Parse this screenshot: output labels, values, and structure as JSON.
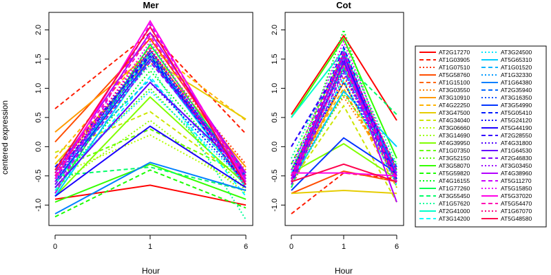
{
  "chart_data": {
    "type": "line",
    "ylabel": "centered expression",
    "x_categories": [
      "0",
      "1",
      "6"
    ],
    "ylim": [
      -1.35,
      2.3
    ],
    "yticks": [
      -1.0,
      -0.5,
      0.0,
      0.5,
      1.0,
      1.5,
      2.0
    ],
    "yticks_labels": [
      "-1.0",
      "-0.5",
      "0.0",
      "0.5",
      "1.0",
      "1.5",
      "2.0"
    ],
    "panels": [
      {
        "title": "Mer",
        "xlabel": "Hour"
      },
      {
        "title": "Cot",
        "xlabel": "Hour"
      }
    ],
    "series": [
      {
        "name": "AT2G17270",
        "color": "#FF0000",
        "dash": "solid",
        "mer": [
          -0.9,
          -0.66,
          -1.0
        ],
        "cot": [
          0.55,
          1.9,
          0.45
        ]
      },
      {
        "name": "AT1G03905",
        "color": "#FF1A00",
        "dash": "dashed",
        "mer": [
          0.65,
          1.95,
          0.22
        ],
        "cot": [
          -1.15,
          -0.45,
          -0.55
        ]
      },
      {
        "name": "AT1G07510",
        "color": "#FF3300",
        "dash": "dotted",
        "mer": [
          -0.5,
          1.65,
          -0.3
        ],
        "cot": [
          -0.7,
          1.2,
          -0.4
        ]
      },
      {
        "name": "AT5G58760",
        "color": "#FF4D00",
        "dash": "solid",
        "mer": [
          0.08,
          1.85,
          -0.45
        ],
        "cot": [
          -0.8,
          -0.42,
          -0.6
        ]
      },
      {
        "name": "AT1G15100",
        "color": "#FF6600",
        "dash": "dashed",
        "mer": [
          -0.4,
          1.55,
          -0.5
        ],
        "cot": [
          -0.6,
          0.95,
          -0.55
        ]
      },
      {
        "name": "AT3G03550",
        "color": "#FF8000",
        "dash": "dotted",
        "mer": [
          -0.6,
          1.45,
          -0.4
        ],
        "cot": [
          -0.4,
          0.85,
          -0.5
        ]
      },
      {
        "name": "AT3G10910",
        "color": "#FF9900",
        "dash": "solid",
        "mer": [
          0.25,
          1.6,
          -0.35
        ],
        "cot": [
          -0.55,
          1.1,
          -0.6
        ]
      },
      {
        "name": "AT4G22250",
        "color": "#FFB300",
        "dash": "dashed",
        "mer": [
          -0.2,
          1.7,
          0.45
        ],
        "cot": [
          -0.5,
          1.0,
          -0.7
        ]
      },
      {
        "name": "AT3G47500",
        "color": "#E6CC00",
        "dash": "solid",
        "mer": [
          -0.3,
          1.5,
          0.47
        ],
        "cot": [
          -0.8,
          -0.75,
          -0.8
        ]
      },
      {
        "name": "AT4G34040",
        "color": "#CCE600",
        "dash": "dashed",
        "mer": [
          -0.1,
          0.6,
          -0.6
        ],
        "cot": [
          -0.6,
          0.7,
          -0.95
        ]
      },
      {
        "name": "AT3G06660",
        "color": "#B3FF00",
        "dash": "dotted",
        "mer": [
          -0.5,
          0.2,
          -0.7
        ],
        "cot": [
          -0.7,
          1.5,
          -0.5
        ]
      },
      {
        "name": "AT3G14690",
        "color": "#99FF00",
        "dash": "dotted",
        "mer": [
          -0.7,
          0.45,
          -0.8
        ],
        "cot": [
          -0.5,
          1.4,
          -0.6
        ]
      },
      {
        "name": "AT4G39950",
        "color": "#80FF00",
        "dash": "solid",
        "mer": [
          -0.85,
          0.85,
          -0.65
        ],
        "cot": [
          -0.45,
          0.05,
          -0.55
        ]
      },
      {
        "name": "AT1G07350",
        "color": "#66FF00",
        "dash": "dashed",
        "mer": [
          -0.4,
          0.3,
          -0.5
        ],
        "cot": [
          -0.3,
          1.6,
          -0.4
        ]
      },
      {
        "name": "AT3G52150",
        "color": "#4DFF00",
        "dash": "dotted",
        "mer": [
          -0.6,
          1.0,
          -0.75
        ],
        "cot": [
          -0.6,
          0.9,
          -0.3
        ]
      },
      {
        "name": "AT3G58070",
        "color": "#33FF00",
        "dash": "solid",
        "mer": [
          -0.95,
          -0.3,
          -0.9
        ],
        "cot": [
          0.5,
          1.85,
          -0.2
        ]
      },
      {
        "name": "AT5G59820",
        "color": "#1AFF00",
        "dash": "dashed",
        "mer": [
          -1.2,
          -0.4,
          -1.05
        ],
        "cot": [
          -0.5,
          1.55,
          -0.6
        ]
      },
      {
        "name": "AT4G16155",
        "color": "#00FF1A",
        "dash": "dotted",
        "mer": [
          -0.7,
          1.3,
          -0.6
        ],
        "cot": [
          -0.6,
          2.0,
          -0.7
        ]
      },
      {
        "name": "AT1G77260",
        "color": "#00FF4D",
        "dash": "solid",
        "mer": [
          -0.8,
          1.75,
          -0.55
        ],
        "cot": [
          -0.4,
          1.35,
          -0.45
        ]
      },
      {
        "name": "AT3G55450",
        "color": "#00FF66",
        "dash": "dashed",
        "mer": [
          -0.5,
          -0.35,
          -0.75
        ],
        "cot": [
          -0.7,
          1.45,
          0.55
        ]
      },
      {
        "name": "AT1G57620",
        "color": "#00FF99",
        "dash": "dotted",
        "mer": [
          -0.45,
          1.4,
          -1.25
        ],
        "cot": [
          -0.2,
          1.7,
          -0.3
        ]
      },
      {
        "name": "AT2G41000",
        "color": "#00FFCC",
        "dash": "solid",
        "mer": [
          -0.65,
          1.6,
          -0.7
        ],
        "cot": [
          0.5,
          1.65,
          -0.5
        ]
      },
      {
        "name": "AT3G14200",
        "color": "#00FFFF",
        "dash": "dashed",
        "mer": [
          -0.75,
          1.2,
          -0.85
        ],
        "cot": [
          -0.45,
          1.15,
          -0.65
        ]
      },
      {
        "name": "AT3G24500",
        "color": "#00E6FF",
        "dash": "dotted",
        "mer": [
          -0.55,
          0.95,
          -0.6
        ],
        "cot": [
          -0.55,
          1.25,
          -0.5
        ]
      },
      {
        "name": "AT5G65310",
        "color": "#00CCFF",
        "dash": "solid",
        "mer": [
          -0.85,
          1.5,
          -0.65
        ],
        "cot": [
          -0.6,
          0.95,
          0.0
        ]
      },
      {
        "name": "AT1G01520",
        "color": "#00B3FF",
        "dash": "dashed",
        "mer": [
          -0.4,
          1.15,
          -0.55
        ],
        "cot": [
          -0.5,
          1.35,
          -0.45
        ]
      },
      {
        "name": "AT1G32330",
        "color": "#0099FF",
        "dash": "dotted",
        "mer": [
          -0.6,
          1.65,
          -0.6
        ],
        "cot": [
          -0.55,
          1.5,
          -0.55
        ]
      },
      {
        "name": "AT1G64380",
        "color": "#0080FF",
        "dash": "solid",
        "mer": [
          -1.15,
          -0.27,
          -0.75
        ],
        "cot": [
          -0.6,
          1.6,
          -0.45
        ]
      },
      {
        "name": "AT2G35940",
        "color": "#0066FF",
        "dash": "dashed",
        "mer": [
          -0.55,
          1.55,
          -0.45
        ],
        "cot": [
          0.0,
          1.45,
          -0.35
        ]
      },
      {
        "name": "AT3G16350",
        "color": "#004DFF",
        "dash": "dotted",
        "mer": [
          -0.45,
          1.65,
          -0.55
        ],
        "cot": [
          -0.3,
          1.3,
          -0.55
        ]
      },
      {
        "name": "AT3G54990",
        "color": "#0033FF",
        "dash": "solid",
        "mer": [
          -0.6,
          1.5,
          -0.5
        ],
        "cot": [
          -0.75,
          0.15,
          -0.45
        ]
      },
      {
        "name": "AT5G05410",
        "color": "#001AFF",
        "dash": "dashed",
        "mer": [
          -0.35,
          1.55,
          -0.65
        ],
        "cot": [
          -0.5,
          1.7,
          -0.6
        ]
      },
      {
        "name": "AT5G24120",
        "color": "#0000FF",
        "dash": "dotted",
        "mer": [
          -0.7,
          1.1,
          -0.6
        ],
        "cot": [
          -0.4,
          1.1,
          -0.5
        ]
      },
      {
        "name": "AT5G44190",
        "color": "#1A00FF",
        "dash": "solid",
        "mer": [
          -0.85,
          0.35,
          -0.7
        ],
        "cot": [
          -0.5,
          1.55,
          -0.55
        ]
      },
      {
        "name": "AT2G28550",
        "color": "#3300FF",
        "dash": "dashed",
        "mer": [
          -0.5,
          1.6,
          -0.6
        ],
        "cot": [
          0.0,
          1.5,
          -0.4
        ]
      },
      {
        "name": "AT4G31800",
        "color": "#4D00FF",
        "dash": "dotted",
        "mer": [
          -0.55,
          1.65,
          -0.55
        ],
        "cot": [
          -0.6,
          1.4,
          -0.6
        ]
      },
      {
        "name": "AT1G64530",
        "color": "#6600FF",
        "dash": "solid",
        "mer": [
          -0.7,
          1.1,
          -0.45
        ],
        "cot": [
          -0.6,
          1.45,
          -0.5
        ]
      },
      {
        "name": "AT2G46830",
        "color": "#8000FF",
        "dash": "dashed",
        "mer": [
          -0.65,
          1.45,
          -0.5
        ],
        "cot": [
          -0.65,
          1.3,
          -0.6
        ]
      },
      {
        "name": "AT3G03450",
        "color": "#9900FF",
        "dash": "dotted",
        "mer": [
          -0.5,
          1.5,
          -0.55
        ],
        "cot": [
          -0.55,
          1.25,
          -0.65
        ]
      },
      {
        "name": "AT4G38960",
        "color": "#B300FF",
        "dash": "solid",
        "mer": [
          -0.45,
          1.95,
          -0.45
        ],
        "cot": [
          -0.55,
          1.55,
          -0.95
        ]
      },
      {
        "name": "AT5G11270",
        "color": "#CC00FF",
        "dash": "dashed",
        "mer": [
          -0.8,
          2.1,
          -0.55
        ],
        "cot": [
          -0.5,
          1.65,
          -0.6
        ]
      },
      {
        "name": "AT5G15850",
        "color": "#E600FF",
        "dash": "dotted",
        "mer": [
          -0.6,
          1.8,
          -0.65
        ],
        "cot": [
          -0.4,
          1.8,
          -0.45
        ]
      },
      {
        "name": "AT5G37020",
        "color": "#FF00E6",
        "dash": "solid",
        "mer": [
          -0.55,
          2.15,
          -0.6
        ],
        "cot": [
          -0.45,
          -0.45,
          -0.5
        ]
      },
      {
        "name": "AT5G54470",
        "color": "#FF00B3",
        "dash": "dashed",
        "mer": [
          -0.5,
          1.9,
          -0.5
        ],
        "cot": [
          -0.6,
          1.4,
          -0.55
        ]
      },
      {
        "name": "AT1G67070",
        "color": "#FF0080",
        "dash": "dotted",
        "mer": [
          -0.45,
          1.7,
          -0.7
        ],
        "cot": [
          -0.5,
          1.6,
          -0.4
        ]
      },
      {
        "name": "AT5G48580",
        "color": "#FF004D",
        "dash": "solid",
        "mer": [
          -0.4,
          2.05,
          -0.65
        ],
        "cot": [
          -0.6,
          -0.3,
          -0.6
        ]
      }
    ]
  }
}
